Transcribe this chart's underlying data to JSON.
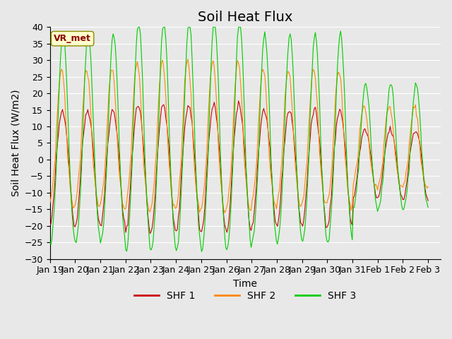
{
  "title": "Soil Heat Flux",
  "ylabel": "Soil Heat Flux (W/m2)",
  "xlabel": "Time",
  "ylim": [
    -30,
    40
  ],
  "xlim_days": 15.5,
  "xtick_labels": [
    "Jan 19",
    "Jan 20",
    "Jan 21",
    "Jan 22",
    "Jan 23",
    "Jan 24",
    "Jan 25",
    "Jan 26",
    "Jan 27",
    "Jan 28",
    "Jan 29",
    "Jan 30",
    "Jan 31",
    "Feb 1",
    "Feb 2",
    "Feb 3"
  ],
  "color_shf1": "#CC0000",
  "color_shf2": "#FF8800",
  "color_shf3": "#00CC00",
  "legend_labels": [
    "SHF 1",
    "SHF 2",
    "SHF 3"
  ],
  "annotation_text": "VR_met",
  "annotation_color": "#8B0000",
  "annotation_bg": "#FFFFCC",
  "bg_color": "#E8E8E8",
  "plot_bg": "#E8E8E8",
  "grid_color": "#FFFFFF",
  "title_fontsize": 14,
  "axis_fontsize": 10,
  "tick_fontsize": 9,
  "noise_scale": 0.5
}
